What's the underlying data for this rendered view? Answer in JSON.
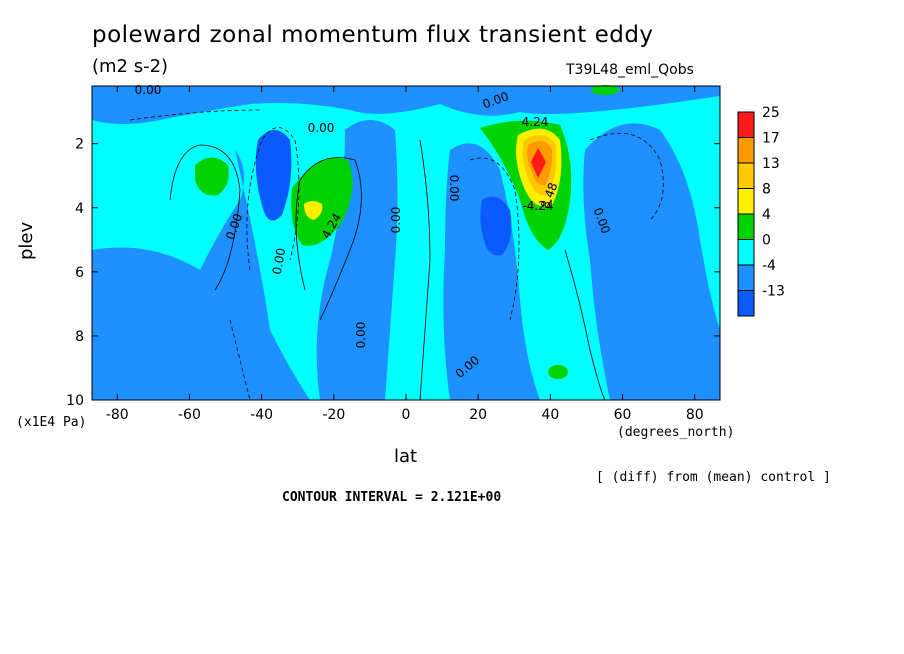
{
  "chart_data": {
    "type": "contour",
    "title": "poleward zonal momentum flux transient eddy",
    "units": "(m2 s-2)",
    "dataset": "T39L48_eml_Qobs",
    "xlabel": "lat",
    "x_units": "(degrees_north)",
    "ylabel": "plev",
    "y_units": "(x1E4 Pa)",
    "x_ticks": [
      -80,
      -60,
      -40,
      -20,
      0,
      20,
      40,
      60,
      80
    ],
    "y_ticks": [
      2,
      4,
      6,
      8,
      10
    ],
    "xlim": [
      -87,
      87
    ],
    "ylim": [
      0.2,
      10
    ],
    "note": "[ (diff) from (mean) control ]",
    "contour_interval": "CONTOUR INTERVAL = 2.121E+00",
    "colorbar": {
      "labels": [
        "25",
        "17",
        "13",
        "8",
        "4",
        "0",
        "-4",
        "-13"
      ],
      "colors": [
        "#ff1a1a",
        "#ff9a00",
        "#ffc900",
        "#fff000",
        "#00d200",
        "#00ffff",
        "#1e90ff",
        "#0a5aff"
      ]
    },
    "contour_labels": [
      "0.00",
      "0.00",
      "0.00",
      "0.00",
      "0.00",
      "0.00",
      "0.00",
      "0.00",
      "0.00",
      "0.00",
      "4.24",
      "4.24",
      "8.48",
      "-4.24"
    ],
    "features": [
      {
        "lat": 37,
        "plev": 2.6,
        "value": 25
      },
      {
        "lat": -27,
        "plev": 4.0,
        "value": 8
      },
      {
        "lat": -55,
        "plev": 2.8,
        "value": 4
      },
      {
        "lat": -35,
        "plev": 3.0,
        "value": -6
      },
      {
        "lat": 24,
        "plev": 4.3,
        "value": -6
      },
      {
        "lat": 42,
        "plev": 9.1,
        "value": 4
      }
    ]
  }
}
